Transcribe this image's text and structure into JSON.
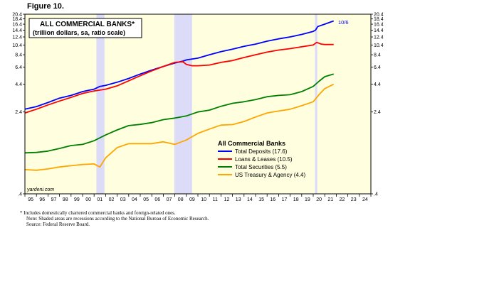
{
  "figure_label": "Figure 10.",
  "footnotes": [
    "*  Includes domestically chartered commercial banks and foreign-related ones.",
    "Note: Shaded areas are recessions according to the National Bureau of Economic Research.",
    "Source: Federal Reserve Board."
  ],
  "colors": {
    "plot_bg": "#ffffe0",
    "recession": "#dcdcf8",
    "total_deposits": "#0000ff",
    "loans_leases": "#ff0000",
    "total_securities": "#008000",
    "treasury_agency": "#ffa500"
  },
  "chart_data": {
    "type": "line",
    "title": "ALL COMMERCIAL BANKS*",
    "subtitle": "(trillion dollars, sa, ratio scale)",
    "y_scale": "log",
    "ylim": [
      0.4,
      20.4
    ],
    "y_ticks": [
      0.4,
      2.4,
      4.4,
      6.4,
      8.4,
      10.4,
      12.4,
      14.4,
      16.4,
      18.4,
      20.4
    ],
    "y_tick_labels": [
      ".4",
      "2.4",
      "4.4",
      "6.4",
      "8.4",
      "10.4",
      "12.4",
      "14.4",
      "16.4",
      "18.4",
      "20.4"
    ],
    "xlim": [
      1995,
      2025
    ],
    "x_tick_labels": [
      "95",
      "96",
      "97",
      "98",
      "99",
      "00",
      "01",
      "02",
      "03",
      "04",
      "05",
      "06",
      "07",
      "08",
      "09",
      "10",
      "11",
      "12",
      "13",
      "14",
      "15",
      "16",
      "17",
      "18",
      "19",
      "20",
      "21",
      "22",
      "23",
      "24"
    ],
    "recessions": [
      [
        2001.2,
        2001.9
      ],
      [
        2007.95,
        2009.5
      ],
      [
        2020.15,
        2020.35
      ]
    ],
    "legend_title": "All Commercial Banks",
    "legend_position": "lower-right",
    "end_annotation": "10/6",
    "watermark": "yardeni.com",
    "series": [
      {
        "name": "Total Deposits (17.6)",
        "color_key": "total_deposits",
        "points": [
          [
            1995,
            2.55
          ],
          [
            1996,
            2.7
          ],
          [
            1997,
            2.95
          ],
          [
            1998,
            3.25
          ],
          [
            1999,
            3.45
          ],
          [
            2000,
            3.75
          ],
          [
            2001,
            3.95
          ],
          [
            2001.5,
            4.2
          ],
          [
            2002,
            4.3
          ],
          [
            2003,
            4.6
          ],
          [
            2004,
            5.0
          ],
          [
            2005,
            5.5
          ],
          [
            2006,
            6.0
          ],
          [
            2007,
            6.5
          ],
          [
            2008,
            7.0
          ],
          [
            2008.7,
            7.3
          ],
          [
            2009,
            7.5
          ],
          [
            2010,
            7.8
          ],
          [
            2011,
            8.4
          ],
          [
            2012,
            9.0
          ],
          [
            2013,
            9.5
          ],
          [
            2014,
            10.1
          ],
          [
            2015,
            10.6
          ],
          [
            2016,
            11.3
          ],
          [
            2017,
            11.9
          ],
          [
            2018,
            12.4
          ],
          [
            2019,
            13.1
          ],
          [
            2020,
            14.0
          ],
          [
            2020.2,
            14.4
          ],
          [
            2020.4,
            15.6
          ],
          [
            2021,
            16.4
          ],
          [
            2021.77,
            17.6
          ]
        ]
      },
      {
        "name": "Loans & Leases (10.5)",
        "color_key": "loans_leases",
        "points": [
          [
            1995,
            2.35
          ],
          [
            1996,
            2.55
          ],
          [
            1997,
            2.8
          ],
          [
            1998,
            3.05
          ],
          [
            1999,
            3.3
          ],
          [
            2000,
            3.6
          ],
          [
            2001,
            3.8
          ],
          [
            2002,
            3.95
          ],
          [
            2003,
            4.25
          ],
          [
            2004,
            4.75
          ],
          [
            2005,
            5.3
          ],
          [
            2006,
            5.9
          ],
          [
            2007,
            6.5
          ],
          [
            2008,
            7.1
          ],
          [
            2008.7,
            7.2
          ],
          [
            2009,
            6.8
          ],
          [
            2009.5,
            6.6
          ],
          [
            2010,
            6.6
          ],
          [
            2011,
            6.7
          ],
          [
            2012,
            7.1
          ],
          [
            2013,
            7.4
          ],
          [
            2014,
            7.9
          ],
          [
            2015,
            8.4
          ],
          [
            2016,
            8.9
          ],
          [
            2017,
            9.3
          ],
          [
            2018,
            9.6
          ],
          [
            2019,
            10.0
          ],
          [
            2020,
            10.4
          ],
          [
            2020.3,
            11.0
          ],
          [
            2020.7,
            10.6
          ],
          [
            2021,
            10.5
          ],
          [
            2021.77,
            10.5
          ]
        ]
      },
      {
        "name": "Total Securities (5.5)",
        "color_key": "total_securities",
        "points": [
          [
            1995,
            0.98
          ],
          [
            1996,
            0.99
          ],
          [
            1997,
            1.02
          ],
          [
            1998,
            1.08
          ],
          [
            1999,
            1.15
          ],
          [
            2000,
            1.18
          ],
          [
            2001,
            1.28
          ],
          [
            2002,
            1.45
          ],
          [
            2003,
            1.62
          ],
          [
            2004,
            1.78
          ],
          [
            2005,
            1.83
          ],
          [
            2006,
            1.9
          ],
          [
            2007,
            2.03
          ],
          [
            2008,
            2.1
          ],
          [
            2009,
            2.2
          ],
          [
            2010,
            2.4
          ],
          [
            2011,
            2.5
          ],
          [
            2012,
            2.72
          ],
          [
            2013,
            2.9
          ],
          [
            2014,
            3.0
          ],
          [
            2015,
            3.15
          ],
          [
            2016,
            3.35
          ],
          [
            2017,
            3.45
          ],
          [
            2018,
            3.5
          ],
          [
            2019,
            3.75
          ],
          [
            2020,
            4.2
          ],
          [
            2020.5,
            4.7
          ],
          [
            2021,
            5.2
          ],
          [
            2021.77,
            5.5
          ]
        ]
      },
      {
        "name": "US Treasury & Agency (4.4)",
        "color_key": "treasury_agency",
        "points": [
          [
            1995,
            0.68
          ],
          [
            1996,
            0.67
          ],
          [
            1997,
            0.69
          ],
          [
            1998,
            0.72
          ],
          [
            1999,
            0.74
          ],
          [
            2000,
            0.76
          ],
          [
            2001,
            0.77
          ],
          [
            2001.5,
            0.72
          ],
          [
            2002,
            0.88
          ],
          [
            2003,
            1.1
          ],
          [
            2004,
            1.2
          ],
          [
            2005,
            1.2
          ],
          [
            2006,
            1.2
          ],
          [
            2007,
            1.25
          ],
          [
            2008,
            1.18
          ],
          [
            2009,
            1.3
          ],
          [
            2010,
            1.5
          ],
          [
            2011,
            1.65
          ],
          [
            2012,
            1.8
          ],
          [
            2013,
            1.82
          ],
          [
            2014,
            1.95
          ],
          [
            2015,
            2.15
          ],
          [
            2016,
            2.35
          ],
          [
            2017,
            2.45
          ],
          [
            2018,
            2.55
          ],
          [
            2019,
            2.75
          ],
          [
            2020,
            3.0
          ],
          [
            2020.5,
            3.5
          ],
          [
            2021,
            4.0
          ],
          [
            2021.77,
            4.4
          ]
        ]
      }
    ]
  }
}
